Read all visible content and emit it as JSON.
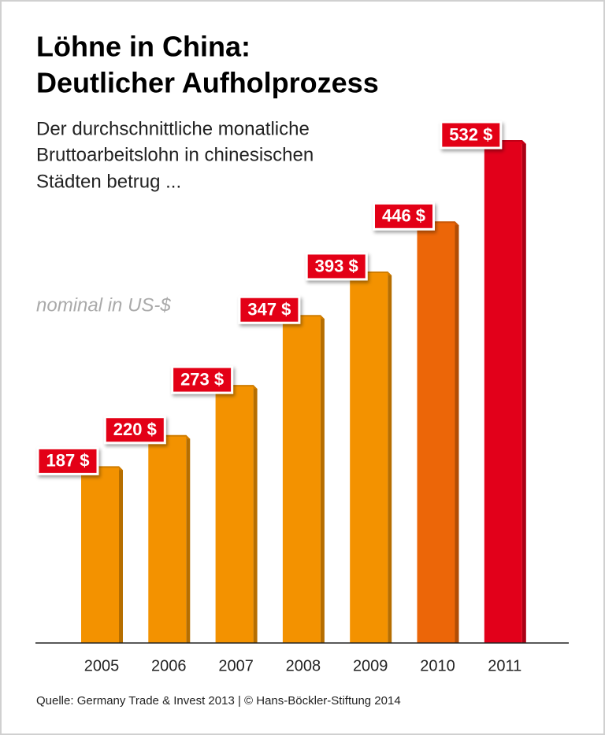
{
  "chart_data": {
    "type": "bar",
    "title": [
      "Löhne in China:",
      "Deutlicher Aufholprozess"
    ],
    "subtitle": [
      "Der durchschnittliche monatliche",
      "Bruttoarbeitslohn in chinesischen",
      "Städten betrug ..."
    ],
    "annotation": "nominal in US-$",
    "source": "Quelle: Germany Trade & Invest 2013 | © Hans-Böckler-Stiftung 2014",
    "categories": [
      "2005",
      "2006",
      "2007",
      "2008",
      "2009",
      "2010",
      "2011"
    ],
    "values": [
      187,
      220,
      273,
      347,
      393,
      446,
      532
    ],
    "value_labels": [
      "187 $",
      "220 $",
      "273 $",
      "347 $",
      "393 $",
      "446 $",
      "532 $"
    ],
    "colors": [
      "#f39200",
      "#f39200",
      "#f39200",
      "#f39200",
      "#f39200",
      "#ec6608",
      "#e2001a"
    ],
    "label_color": "#e30613"
  }
}
